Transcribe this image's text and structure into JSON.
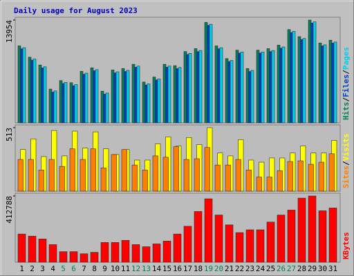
{
  "chart_data": {
    "type": "bar",
    "title": "Daily usage for August 2023",
    "title_color": "#0000c0",
    "separator": "/",
    "categories": [
      "1",
      "2",
      "3",
      "4",
      "5",
      "6",
      "7",
      "8",
      "9",
      "10",
      "11",
      "12",
      "13",
      "14",
      "15",
      "16",
      "17",
      "18",
      "19",
      "20",
      "21",
      "22",
      "23",
      "24",
      "25",
      "26",
      "27",
      "28",
      "29",
      "30",
      "31"
    ],
    "label_colors": [
      "#000000",
      "#000000",
      "#000000",
      "#000000",
      "#00805c",
      "#00805c",
      "#000000",
      "#000000",
      "#000000",
      "#000000",
      "#000000",
      "#00805c",
      "#00805c",
      "#000000",
      "#000000",
      "#000000",
      "#000000",
      "#000000",
      "#00805c",
      "#00805c",
      "#000000",
      "#000000",
      "#000000",
      "#000000",
      "#000000",
      "#00805c",
      "#00805c",
      "#000000",
      "#000000",
      "#000000",
      "#000000"
    ],
    "panels": [
      {
        "ylim": [
          0,
          13954
        ],
        "yticks": [
          13954
        ],
        "series": [
          {
            "name": "Hits",
            "color": "#00805c",
            "values": [
              10450,
              8910,
              7850,
              4580,
              5740,
              5450,
              6990,
              7470,
              4290,
              7180,
              7370,
              7950,
              5540,
              6220,
              7950,
              7760,
              9680,
              10070,
              13630,
              10450,
              8720,
              9870,
              7370,
              9870,
              10070,
              10550,
              12660,
              11700,
              13954,
              10840,
              11220
            ]
          },
          {
            "name": "Files",
            "color": "#0040c0",
            "values": [
              10050,
              8510,
              7450,
              4180,
              5340,
              5050,
              6590,
              7070,
              3890,
              6780,
              6970,
              7550,
              5140,
              5820,
              7550,
              7360,
              9280,
              9670,
              13230,
              10050,
              8320,
              9470,
              6970,
              9470,
              9670,
              10150,
              12260,
              11300,
              13550,
              10440,
              10820
            ]
          },
          {
            "name": "Pages",
            "color": "#00d0e8",
            "values": [
              10200,
              8660,
              7600,
              4330,
              5490,
              5200,
              6740,
              7220,
              4040,
              6930,
              7120,
              7700,
              5290,
              5970,
              7700,
              7510,
              9430,
              9820,
              13380,
              10200,
              8470,
              9620,
              7120,
              9620,
              9820,
              10300,
              12410,
              11450,
              13700,
              10590,
              10970
            ]
          }
        ]
      },
      {
        "ylim": [
          0,
          513
        ],
        "yticks": [
          513
        ],
        "series": [
          {
            "name": "Sites",
            "color": "#ff8000",
            "values": [
              256,
              256,
              171,
              256,
              200,
              342,
              256,
              342,
              188,
              296,
              336,
              211,
              171,
              285,
              274,
              359,
              256,
              262,
              353,
              211,
              211,
              256,
              171,
              114,
              114,
              165,
              239,
              245,
              217,
              234,
              302
            ]
          },
          {
            "name": "Visits",
            "color": "#ffff00",
            "values": [
              336,
              422,
              279,
              490,
              285,
              485,
              348,
              479,
              342,
              296,
              336,
              251,
              251,
              382,
              439,
              365,
              433,
              376,
              513,
              308,
              285,
              416,
              251,
              234,
              268,
              268,
              308,
              365,
              308,
              308,
              410
            ]
          }
        ]
      },
      {
        "ylim": [
          0,
          412788
        ],
        "yticks": [
          412788
        ],
        "series": [
          {
            "name": "KBytes",
            "color": "#ff0000",
            "values": [
              175640,
              162470,
              144900,
              109780,
              65870,
              65870,
              52690,
              61470,
              122950,
              122950,
              136120,
              109780,
              96600,
              114170,
              131730,
              175640,
              223940,
              316150,
              395190,
              294200,
              232720,
              184420,
              201990,
              201990,
              250290,
              294200,
              324930,
              399580,
              412788,
              320540,
              338110
            ]
          }
        ]
      }
    ]
  }
}
